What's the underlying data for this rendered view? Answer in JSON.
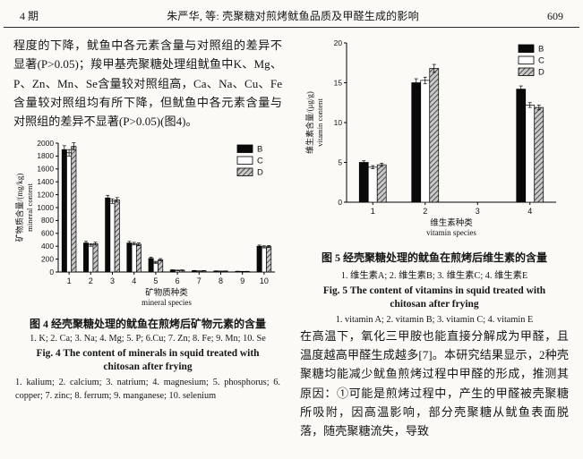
{
  "header": {
    "issue_label": "4 期",
    "running_title": "朱严华, 等: 壳聚糖对煎烤鱿鱼品质及甲醛生成的影响",
    "page_number": "609"
  },
  "left_column": {
    "paragraph": "程度的下降，鱿鱼中各元素含量与对照组的差异不显著(P>0.05)；羧甲基壳聚糖处理组鱿鱼中K、Mg、P、Zn、Mn、Se含量较对照组高，Ca、Na、Cu、Fe含量较对照组均有所下降，但鱿鱼中各元素含量与对照组的差异不显著(P>0.05)(图4)。",
    "figure4": {
      "caption_cn": "图 4  经壳聚糖处理的鱿鱼在煎烤后矿物元素的含量",
      "key_cn": "1. K; 2. Ca; 3. Na; 4. Mg; 5. P; 6.Cu; 7. Zn; 8. Fe; 9. Mn; 10. Se",
      "caption_en": "Fig. 4  The content of minerals in squid treated with chitosan after frying",
      "key_en": "1. kalium; 2. calcium; 3. natrium; 4. magnesium; 5. phosphorus; 6. copper; 7. zinc; 8. ferrum; 9. manganese; 10. selenium"
    }
  },
  "right_column": {
    "figure5": {
      "caption_cn": "图 5  经壳聚糖处理的鱿鱼在煎烤后维生素的含量",
      "key_cn": "1. 维生素A; 2. 维生素B; 3. 维生素C; 4. 维生素E",
      "caption_en": "Fig. 5  The content of vitamins in squid treated with chitosan after frying",
      "key_en": "1. vitamin A; 2. vitamin B; 3. vitamin C; 4. vitamin E"
    },
    "paragraph": "在高温下，氧化三甲胺也能直接分解成为甲醛，且温度越高甲醛生成越多[7]。本研究结果显示，2种壳聚糖均能减少鱿鱼煎烤过程中甲醛的形成，推测其原因：①可能是煎烤过程中，产生的甲醛被壳聚糖所吸附，因高温影响，部分壳聚糖从鱿鱼表面脱落，随壳聚糖流失，导致"
  },
  "chart_data": [
    {
      "type": "bar",
      "title": "",
      "categories": [
        "1",
        "2",
        "3",
        "4",
        "5",
        "6",
        "7",
        "8",
        "9",
        "10"
      ],
      "series": [
        {
          "name": "B",
          "fill": "black",
          "values": [
            1900,
            450,
            1150,
            450,
            210,
            30,
            20,
            15,
            10,
            400
          ],
          "errors": [
            60,
            25,
            40,
            25,
            20,
            5,
            4,
            3,
            2,
            18
          ]
        },
        {
          "name": "C",
          "fill": "white",
          "values": [
            1850,
            420,
            1100,
            440,
            150,
            25,
            15,
            12,
            8,
            390
          ],
          "errors": [
            50,
            20,
            35,
            20,
            15,
            4,
            3,
            3,
            2,
            16
          ]
        },
        {
          "name": "D",
          "fill": "hatch",
          "values": [
            1950,
            440,
            1120,
            430,
            190,
            28,
            18,
            14,
            9,
            395
          ],
          "errors": [
            55,
            22,
            35,
            22,
            18,
            5,
            4,
            3,
            2,
            16
          ]
        }
      ],
      "ylabel_cn": "矿物质含量/(mg/kg)",
      "ylabel_en": "mineral content",
      "xlabel_cn": "矿物质种类",
      "xlabel_en": "mineral species",
      "ylim": [
        0,
        2000
      ],
      "ytick_step": 200,
      "grid": false,
      "legend_position": "top-right"
    },
    {
      "type": "bar",
      "title": "",
      "categories": [
        "1",
        "2",
        "3",
        "4"
      ],
      "series": [
        {
          "name": "B",
          "fill": "black",
          "values": [
            5.0,
            15.0,
            0,
            14.2
          ],
          "errors": [
            0.2,
            0.5,
            0,
            0.4
          ]
        },
        {
          "name": "C",
          "fill": "white",
          "values": [
            4.4,
            15.3,
            0,
            12.2
          ],
          "errors": [
            0.2,
            0.4,
            0,
            0.3
          ]
        },
        {
          "name": "D",
          "fill": "hatch",
          "values": [
            4.7,
            16.8,
            0,
            11.9
          ],
          "errors": [
            0.2,
            0.5,
            0,
            0.3
          ]
        }
      ],
      "ylabel_cn": "维生素含量/(μg/g)",
      "ylabel_en": "vitamin content",
      "xlabel_cn": "维生素种类",
      "xlabel_en": "vitamin species",
      "ylim": [
        0,
        20
      ],
      "ytick_step": 5,
      "grid": false,
      "legend_position": "top-right"
    }
  ]
}
